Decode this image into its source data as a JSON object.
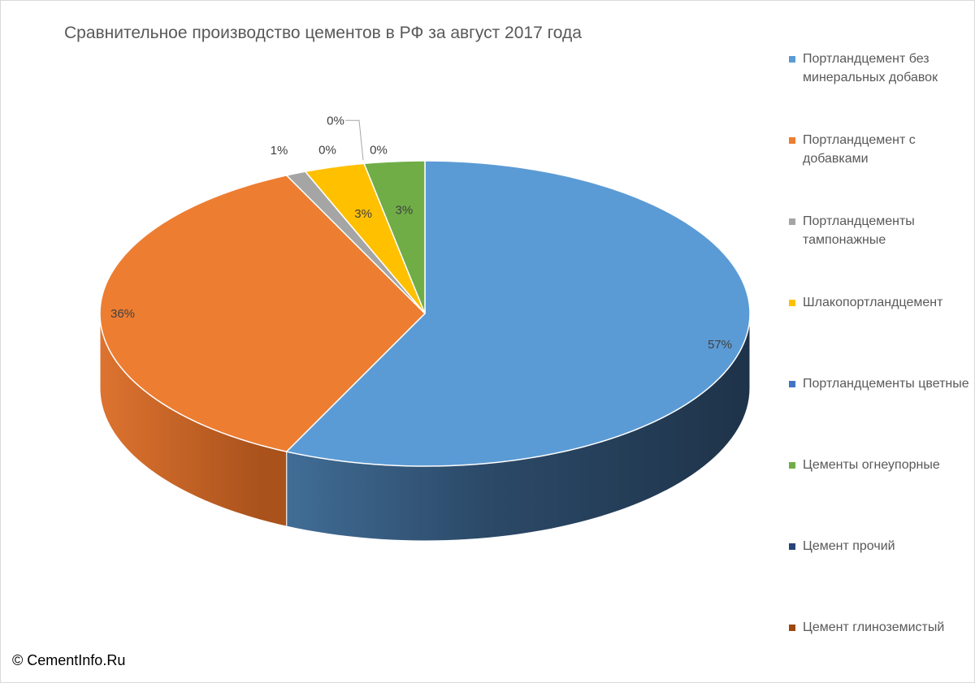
{
  "chart_data": {
    "type": "pie",
    "style": "3d",
    "title": "Сравнительное производство цементов в РФ за август 2017 года",
    "legend_position": "right",
    "series": [
      {
        "name": "Портландцемент без минеральных добавок",
        "value": 57,
        "label": "57%",
        "color": "#5b9bd5"
      },
      {
        "name": "Портландцемент с добавками",
        "value": 36,
        "label": "36%",
        "color": "#ed7d31"
      },
      {
        "name": "Портландцементы тампонажные",
        "value": 1,
        "label": "1%",
        "color": "#a5a5a5"
      },
      {
        "name": "Шлакопортландцемент",
        "value": 3,
        "label": "3%",
        "color": "#ffc000"
      },
      {
        "name": "Портландцементы цветные",
        "value": 0,
        "label": "0%",
        "color": "#4472c4"
      },
      {
        "name": "Цементы огнеупорные",
        "value": 3,
        "label": "3%",
        "color": "#70ad47"
      },
      {
        "name": "Цемент прочий",
        "value": 0,
        "label": "0%",
        "color": "#264478"
      },
      {
        "name": "Цемент глиноземистый",
        "value": 0,
        "label": "0%",
        "color": "#9e480e"
      }
    ]
  },
  "footer": {
    "copyright": "© CementInfo.Ru"
  }
}
